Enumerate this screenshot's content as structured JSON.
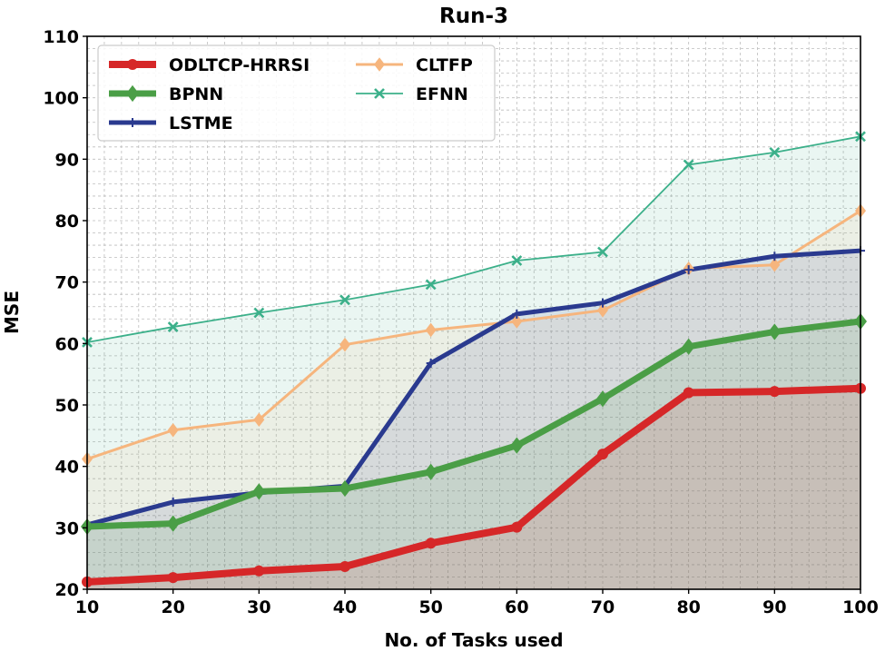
{
  "chart_data": {
    "type": "line",
    "title": "Run-3",
    "xlabel": "No. of Tasks used",
    "ylabel": "MSE",
    "x": [
      10,
      20,
      30,
      40,
      50,
      60,
      70,
      80,
      90,
      100
    ],
    "xlim": [
      10,
      100
    ],
    "ylim": [
      20,
      110
    ],
    "xticks": [
      10,
      20,
      30,
      40,
      50,
      60,
      70,
      80,
      90,
      100
    ],
    "yticks": [
      20,
      30,
      40,
      50,
      60,
      70,
      80,
      90,
      100,
      110
    ],
    "grid": true,
    "filled_area": true,
    "legend_position": "top-left",
    "series": [
      {
        "name": "ODLTCP-HRRSI",
        "color": "#d62728",
        "marker": "circle",
        "values": [
          21.2,
          21.9,
          23.0,
          23.7,
          27.5,
          30.1,
          42.0,
          52.0,
          52.2,
          52.7
        ]
      },
      {
        "name": "BPNN",
        "color": "#4a9e46",
        "marker": "diamond",
        "values": [
          30.2,
          30.7,
          35.9,
          36.4,
          39.1,
          43.4,
          51.0,
          59.5,
          61.9,
          63.6
        ]
      },
      {
        "name": "LSTME",
        "color": "#2a3a8f",
        "marker": "plus",
        "values": [
          30.5,
          34.2,
          35.7,
          36.8,
          56.8,
          64.8,
          66.6,
          72.0,
          74.2,
          75.1
        ]
      },
      {
        "name": "CLTFP",
        "color": "#f6b57d",
        "marker": "diamond",
        "values": [
          41.2,
          45.9,
          47.6,
          59.8,
          62.2,
          63.6,
          65.4,
          72.2,
          72.8,
          81.6
        ]
      },
      {
        "name": "EFNN",
        "color": "#3cb08a",
        "marker": "x",
        "values": [
          60.2,
          62.7,
          65.0,
          67.1,
          69.6,
          73.5,
          74.9,
          89.1,
          91.1,
          93.7
        ]
      }
    ]
  }
}
